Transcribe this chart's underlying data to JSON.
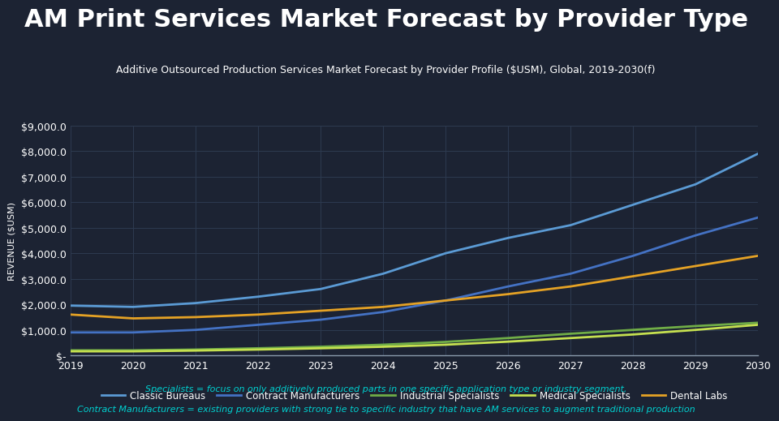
{
  "title": "AM Print Services Market Forecast by Provider Type",
  "subtitle": "Additive Outsourced Production Services Market Forecast by Provider Profile ($USM), Global, 2019-2030(f)",
  "ylabel": "REVENUE ($USM)",
  "footnote_line1": "Specialists = focus on only additively produced parts in one specific application type or industry segment,",
  "footnote_line2": "Contract Manufacturers = existing providers with strong tie to specific industry that have AM services to augment traditional production",
  "background_color": "#1c2333",
  "plot_bg_color": "#1c2333",
  "text_color": "#ffffff",
  "grid_color": "#2d3a50",
  "years": [
    2019,
    2020,
    2021,
    2022,
    2023,
    2024,
    2025,
    2026,
    2027,
    2028,
    2029,
    2030
  ],
  "series": {
    "Classic Bureaus": {
      "color": "#5b9bd5",
      "values": [
        1950,
        1900,
        2050,
        2300,
        2600,
        3200,
        4000,
        4600,
        5100,
        5900,
        6700,
        7900
      ]
    },
    "Contract Manufacturers": {
      "color": "#4472c4",
      "values": [
        900,
        900,
        1000,
        1200,
        1400,
        1700,
        2150,
        2700,
        3200,
        3900,
        4700,
        5400
      ]
    },
    "Industrial Specialists": {
      "color": "#70ad47",
      "values": [
        200,
        200,
        230,
        280,
        340,
        420,
        530,
        680,
        850,
        1000,
        1150,
        1280
      ]
    },
    "Medical Specialists": {
      "color": "#c5e050",
      "values": [
        160,
        160,
        190,
        230,
        280,
        340,
        420,
        540,
        680,
        820,
        1000,
        1200
      ]
    },
    "Dental Labs": {
      "color": "#e5a225",
      "values": [
        1600,
        1450,
        1500,
        1600,
        1750,
        1900,
        2150,
        2400,
        2700,
        3100,
        3500,
        3900
      ]
    }
  },
  "ylim": [
    0,
    9000
  ],
  "yticks": [
    0,
    1000,
    2000,
    3000,
    4000,
    5000,
    6000,
    7000,
    8000,
    9000
  ],
  "title_fontsize": 22,
  "subtitle_fontsize": 9,
  "tick_fontsize": 9,
  "ylabel_fontsize": 8,
  "legend_fontsize": 8.5,
  "footnote_fontsize": 8,
  "footnote_color": "#00d0d0",
  "axis_line_color": "#8899aa"
}
